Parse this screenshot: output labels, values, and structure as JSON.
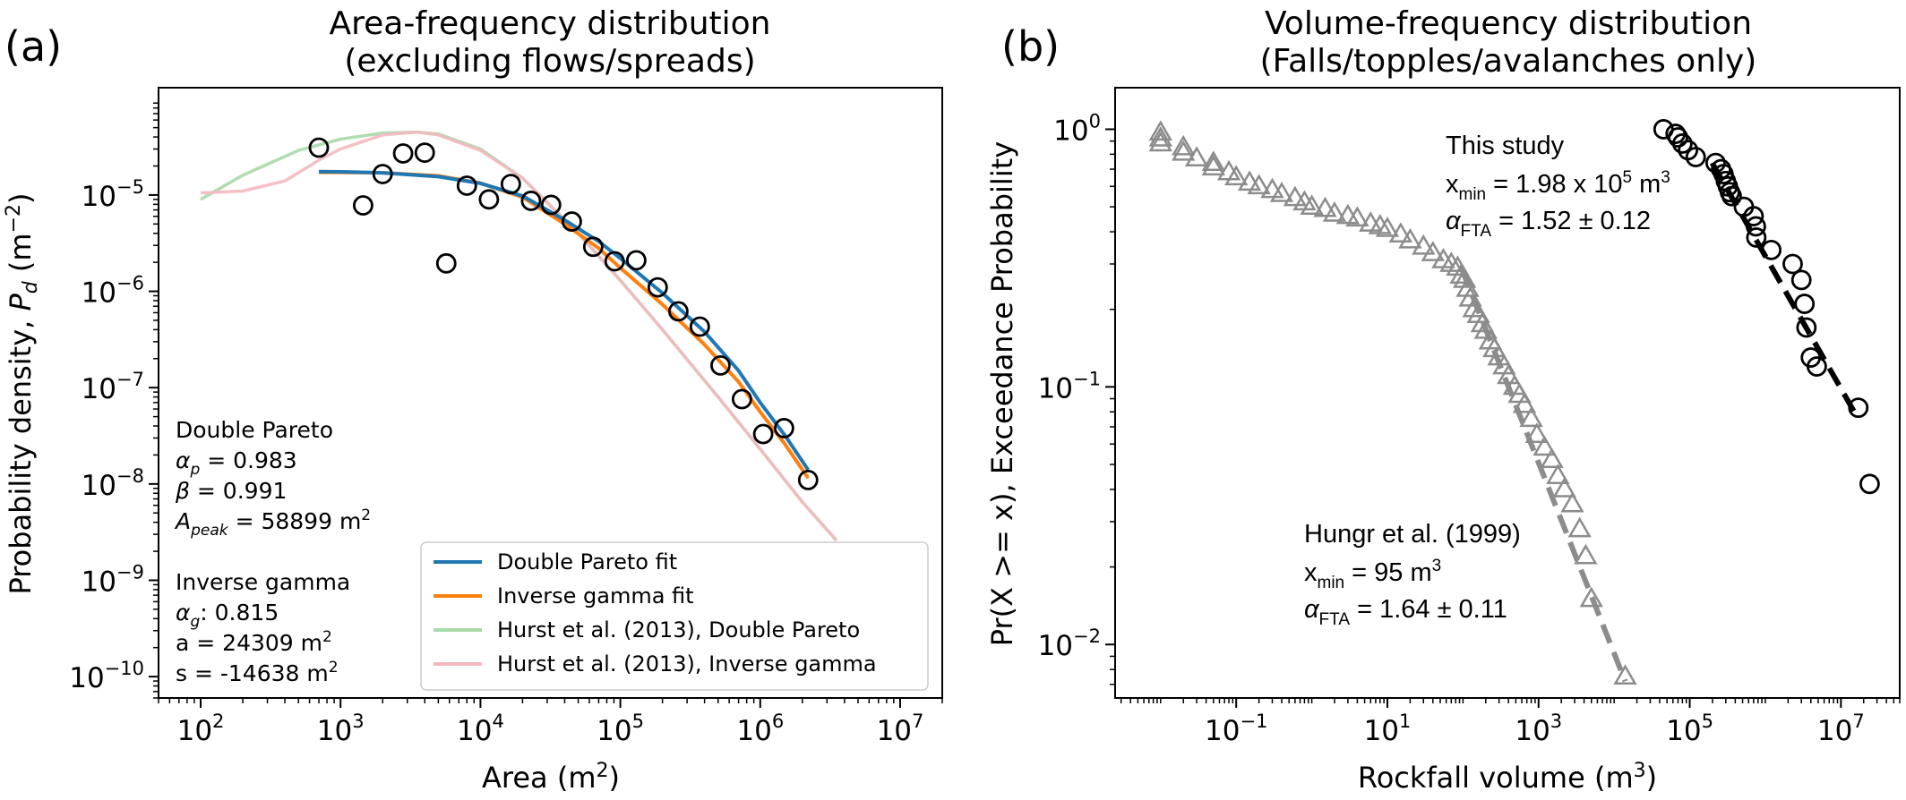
{
  "panel_a": {
    "panel_label": "(a)",
    "title_line1": "Area-frequency distribution",
    "title_line2": "(excluding flows/spreads)",
    "xlabel": "Area (m",
    "xlabel_sup": "2",
    "xlabel_end": ")",
    "ylabel_pre": "Probability density, ",
    "ylabel_sym": "P",
    "ylabel_sub": "d",
    "ylabel_unit": " (m",
    "ylabel_sup": "−2",
    "ylabel_end": ")",
    "annotations": {
      "dp_title": "Double Pareto",
      "dp_alpha_sym": "α",
      "dp_alpha_sub": "p",
      "dp_alpha_val": " = 0.983",
      "dp_beta_sym": "β",
      "dp_beta_val": " = 0.991",
      "dp_apeak_sym": "A",
      "dp_apeak_sub": "peak",
      "dp_apeak_val": " = 58899 m",
      "dp_apeak_sup": "2",
      "ig_title": "Inverse gamma",
      "ig_alpha_sym": "α",
      "ig_alpha_sub": "g",
      "ig_alpha_val": ": 0.815",
      "ig_a": "a = 24309 m",
      "ig_a_sup": "2",
      "ig_s": "s = -14638 m",
      "ig_s_sup": "2"
    }
  },
  "panel_b": {
    "panel_label": "(b)",
    "title_line1": "Volume-frequency distribution",
    "title_line2": "(Falls/topples/avalanches only)",
    "xlabel": "Rockfall volume (m",
    "xlabel_sup": "3",
    "xlabel_end": ")",
    "ylabel": "Pr(X >= x), Exceedance Probability",
    "annotations": {
      "study_title": "This study",
      "study_xmin_pre": "x",
      "study_xmin_sub": "min",
      "study_xmin_val": " = 1.98 x 10",
      "study_xmin_sup": "5",
      "study_xmin_unit": " m",
      "study_xmin_unit_sup": "3",
      "study_alpha_sym": "α",
      "study_alpha_sub": "FTA",
      "study_alpha_val": " = 1.52 ± 0.12",
      "hungr_title": "Hungr et al. (1999)",
      "hungr_xmin_pre": "x",
      "hungr_xmin_sub": "min",
      "hungr_xmin_val": " = 95 m",
      "hungr_xmin_sup": "3",
      "hungr_alpha_sym": "α",
      "hungr_alpha_sub": "FTA",
      "hungr_alpha_val": " = 1.64 ± 0.11"
    }
  },
  "colors": {
    "double_pareto": "#1f77b4",
    "inverse_gamma": "#ff7f0e",
    "hurst_dp": "#a8d9a8",
    "hurst_ig": "#f4b8c0",
    "hungr": "#8c8c8c",
    "study": "#000000"
  },
  "chart_data": [
    {
      "type": "scatter",
      "x_scale": "log",
      "y_scale": "log",
      "xlim": [
        50,
        20000000
      ],
      "ylim": [
        6e-11,
        0.00013
      ],
      "x_ticks": [
        {
          "v": 100,
          "m": "10",
          "e": "2"
        },
        {
          "v": 1000,
          "m": "10",
          "e": "3"
        },
        {
          "v": 10000,
          "m": "10",
          "e": "4"
        },
        {
          "v": 100000,
          "m": "10",
          "e": "5"
        },
        {
          "v": 1000000,
          "m": "10",
          "e": "6"
        },
        {
          "v": 10000000,
          "m": "10",
          "e": "7"
        }
      ],
      "y_ticks": [
        {
          "v": 1e-10,
          "m": "10",
          "e": "−10"
        },
        {
          "v": 1e-09,
          "m": "10",
          "e": "−9"
        },
        {
          "v": 1e-08,
          "m": "10",
          "e": "−8"
        },
        {
          "v": 1e-07,
          "m": "10",
          "e": "−7"
        },
        {
          "v": 1e-06,
          "m": "10",
          "e": "−6"
        },
        {
          "v": 1e-05,
          "m": "10",
          "e": "−5"
        }
      ],
      "legend": "lower-right",
      "points": {
        "x": [
          700,
          1450,
          2000,
          2800,
          4000,
          5700,
          8000,
          11500,
          16500,
          23000,
          32000,
          45000,
          64000,
          91000,
          130000,
          185000,
          260000,
          370000,
          520000,
          740000,
          1050000,
          1480000,
          2200000
        ],
        "y": [
          3.1e-05,
          7.8e-06,
          1.65e-05,
          2.7e-05,
          2.75e-05,
          1.95e-06,
          1.25e-05,
          9e-06,
          1.3e-05,
          8.7e-06,
          7.9e-06,
          5.3e-06,
          2.9e-06,
          2.05e-06,
          2.1e-06,
          1.1e-06,
          6.2e-07,
          4.3e-07,
          1.7e-07,
          7.6e-08,
          3.3e-08,
          3.8e-08,
          1.1e-08
        ]
      },
      "series": [
        {
          "name": "Double Pareto fit",
          "color_key": "double_pareto",
          "x": [
            700,
            1000,
            2000,
            5000,
            10000,
            20000,
            40000,
            70000,
            100000,
            200000,
            400000,
            700000,
            1000000,
            1500000,
            2200000
          ],
          "y": [
            1.75e-05,
            1.74e-05,
            1.7e-05,
            1.55e-05,
            1.32e-05,
            9.8e-06,
            5.5e-06,
            3.3e-06,
            2.2e-06,
            9.6e-07,
            3.8e-07,
            1.5e-07,
            7e-08,
            3.2e-08,
            1.4e-08
          ]
        },
        {
          "name": "Inverse gamma fit",
          "color_key": "inverse_gamma",
          "x": [
            700,
            1000,
            2000,
            5000,
            10000,
            20000,
            40000,
            70000,
            100000,
            200000,
            400000,
            700000,
            1000000,
            1500000,
            2200000
          ],
          "y": [
            1.72e-05,
            1.72e-05,
            1.7e-05,
            1.58e-05,
            1.33e-05,
            9.5e-06,
            5e-06,
            2.8e-06,
            1.75e-06,
            7.3e-07,
            2.8e-07,
            1.15e-07,
            5.6e-08,
            2.6e-08,
            1.15e-08
          ]
        },
        {
          "name": "Hurst et al. (2013), Double Pareto",
          "color_key": "hurst_dp",
          "x": [
            100,
            200,
            500,
            1000,
            2000,
            3500,
            5000,
            10000,
            20000,
            50000,
            100000,
            200000,
            500000,
            1000000,
            2000000,
            3500000
          ],
          "y": [
            9e-06,
            1.6e-05,
            2.9e-05,
            3.8e-05,
            4.4e-05,
            4.5e-05,
            4.3e-05,
            3e-05,
            1.5e-05,
            4e-06,
            1.3e-06,
            4e-07,
            8e-08,
            2.3e-08,
            6.5e-09,
            2.6e-09
          ]
        },
        {
          "name": "Hurst et al. (2013), Inverse gamma",
          "color_key": "hurst_ig",
          "x": [
            100,
            200,
            400,
            700,
            1000,
            2000,
            3500,
            5000,
            10000,
            20000,
            50000,
            100000,
            200000,
            500000,
            1000000,
            2000000,
            3500000
          ],
          "y": [
            1.05e-05,
            1.1e-05,
            1.4e-05,
            2.3e-05,
            3e-05,
            4.2e-05,
            4.5e-05,
            4.2e-05,
            2.9e-05,
            1.5e-05,
            4e-06,
            1.3e-06,
            4e-07,
            8e-08,
            2.3e-08,
            6.5e-09,
            2.6e-09
          ]
        }
      ]
    },
    {
      "type": "scatter",
      "x_scale": "log",
      "y_scale": "log",
      "xlim": [
        0.0025,
        60000000
      ],
      "ylim": [
        0.0062,
        1.45
      ],
      "x_ticks": [
        {
          "v": 0.1,
          "m": "10",
          "e": "−1"
        },
        {
          "v": 10,
          "m": "10",
          "e": "1"
        },
        {
          "v": 1000,
          "m": "10",
          "e": "3"
        },
        {
          "v": 100000,
          "m": "10",
          "e": "5"
        },
        {
          "v": 10000000,
          "m": "10",
          "e": "7"
        }
      ],
      "y_ticks": [
        {
          "v": 0.01,
          "m": "10",
          "e": "−2"
        },
        {
          "v": 0.1,
          "m": "10",
          "e": "−1"
        },
        {
          "v": 1,
          "m": "10",
          "e": "0"
        }
      ],
      "series": [
        {
          "name": "Hungr et al. (1999)",
          "marker": "triangle",
          "color_key": "hungr",
          "x": [
            0.01,
            0.01,
            0.01,
            0.02,
            0.02,
            0.03,
            0.05,
            0.05,
            0.08,
            0.1,
            0.15,
            0.2,
            0.3,
            0.4,
            0.6,
            0.8,
            1,
            1.5,
            2,
            3,
            4,
            6,
            8,
            10,
            15,
            20,
            30,
            40,
            55,
            70,
            85,
            95,
            105,
            115,
            125,
            140,
            160,
            180,
            200,
            230,
            260,
            300,
            350,
            400,
            480,
            560,
            650,
            800,
            950,
            1200,
            1500,
            1800,
            2200,
            2800,
            3500,
            4200,
            5000,
            14000
          ],
          "y": [
            0.97,
            0.92,
            0.88,
            0.85,
            0.81,
            0.77,
            0.74,
            0.71,
            0.68,
            0.65,
            0.62,
            0.6,
            0.58,
            0.56,
            0.54,
            0.52,
            0.5,
            0.49,
            0.47,
            0.46,
            0.45,
            0.43,
            0.42,
            0.41,
            0.39,
            0.37,
            0.35,
            0.33,
            0.31,
            0.3,
            0.29,
            0.27,
            0.26,
            0.24,
            0.22,
            0.2,
            0.19,
            0.175,
            0.165,
            0.15,
            0.14,
            0.13,
            0.12,
            0.11,
            0.1,
            0.093,
            0.085,
            0.075,
            0.065,
            0.058,
            0.052,
            0.045,
            0.04,
            0.035,
            0.028,
            0.022,
            0.015,
            0.0075
          ]
        },
        {
          "name": "This study",
          "marker": "circle",
          "color_key": "study",
          "x": [
            45000,
            65000,
            70000,
            80000,
            95000,
            120000,
            220000,
            260000,
            280000,
            300000,
            320000,
            340000,
            360000,
            520000,
            700000,
            750000,
            760000,
            1200000,
            2300000,
            3000000,
            3300000,
            3500000,
            4000000,
            4800000,
            17000000,
            24000000
          ],
          "y": [
            1.0,
            0.96,
            0.93,
            0.88,
            0.83,
            0.78,
            0.74,
            0.7,
            0.67,
            0.63,
            0.6,
            0.57,
            0.55,
            0.5,
            0.46,
            0.42,
            0.38,
            0.34,
            0.3,
            0.26,
            0.21,
            0.17,
            0.13,
            0.12,
            0.083,
            0.042
          ]
        }
      ],
      "fit_lines": [
        {
          "color_key": "hungr",
          "x": [
            95,
            14000
          ],
          "y": [
            0.29,
            0.0072
          ]
        },
        {
          "color_key": "study",
          "x": [
            198000,
            17000000
          ],
          "y": [
            0.74,
            0.075
          ]
        }
      ]
    }
  ]
}
